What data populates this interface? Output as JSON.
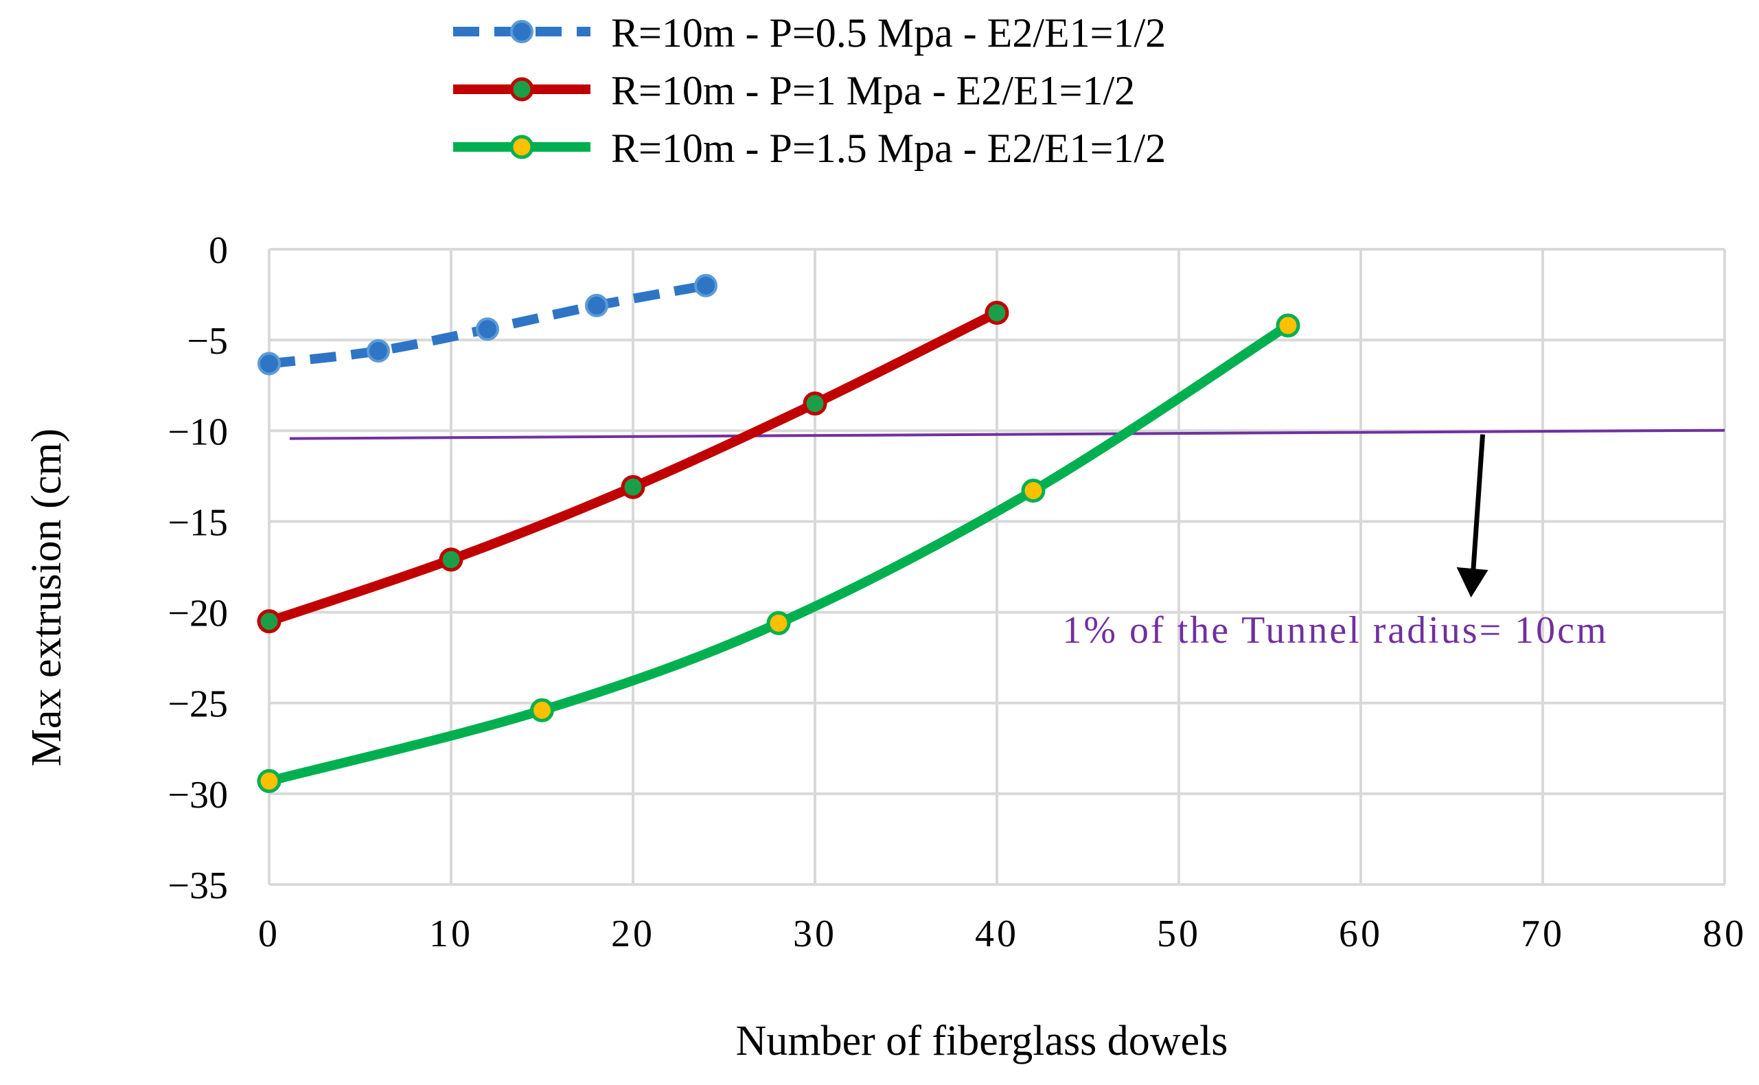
{
  "chart_data": {
    "type": "line",
    "title": "",
    "xlabel": "Number of fiberglass dowels",
    "ylabel": "Max extrusion (cm)",
    "xlim": [
      0,
      80
    ],
    "ylim": [
      -35,
      0
    ],
    "xticks": [
      0,
      10,
      20,
      30,
      40,
      50,
      60,
      70,
      80
    ],
    "yticks": [
      0,
      -5,
      -10,
      -15,
      -20,
      -25,
      -30,
      -35
    ],
    "xtick_labels": [
      "0",
      "10",
      "20",
      "30",
      "40",
      "50",
      "60",
      "70",
      "80"
    ],
    "ytick_labels": [
      "0",
      "−5",
      "−10",
      "−15",
      "−20",
      "−25",
      "−30",
      "−35"
    ],
    "grid": true,
    "legend_position": "top-center",
    "series": [
      {
        "name": "R=10m - P=0.5 Mpa - E2/E1=1/2",
        "color": "#2E75C6",
        "marker_fill": "#2E75C6",
        "dashed": true,
        "x": [
          0,
          6,
          12,
          18,
          24
        ],
        "y": [
          -6.3,
          -5.6,
          -4.4,
          -3.1,
          -2.0
        ]
      },
      {
        "name": "R=10m - P=1 Mpa - E2/E1=1/2",
        "color": "#C00000",
        "marker_fill": "#1B9E48",
        "dashed": false,
        "x": [
          0,
          10,
          20,
          30,
          40
        ],
        "y": [
          -20.5,
          -17.1,
          -13.1,
          -8.5,
          -3.5
        ]
      },
      {
        "name": "R=10m - P=1.5 Mpa - E2/E1=1/2",
        "color": "#00B050",
        "marker_fill": "#FFC000",
        "dashed": false,
        "x": [
          0,
          15,
          28,
          42,
          56
        ],
        "y": [
          -29.3,
          -25.4,
          -20.6,
          -13.3,
          -4.2
        ]
      }
    ],
    "threshold_line": {
      "y": -10.2,
      "color": "#7030A0",
      "label": "1% of the Tunnel radius= 10cm"
    }
  }
}
